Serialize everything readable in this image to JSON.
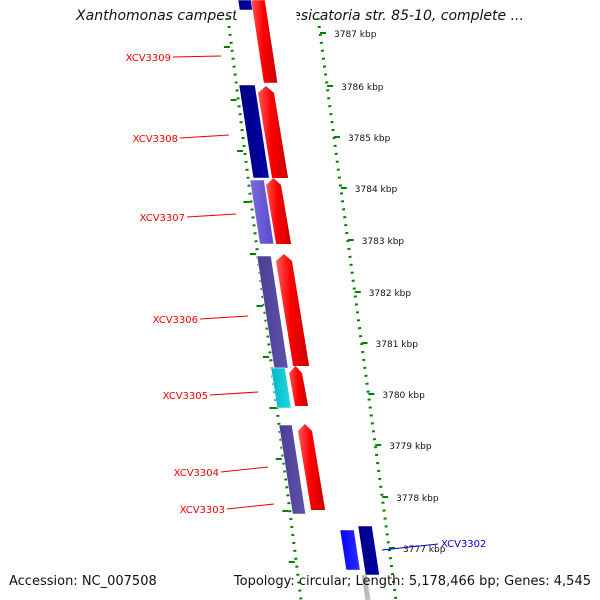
{
  "title": "Xanthomonas campestris pv. vesicatoria str. 85-10, complete ...",
  "scale_labels": [
    "3787 kbp",
    "3786 kbp",
    "3785 kbp",
    "3784 kbp",
    "3783 kbp",
    "3782 kbp",
    "3781 kbp",
    "3780 kbp",
    "3779 kbp",
    "3778 kbp",
    "3777 kbp"
  ],
  "genes": [
    {
      "name": "XCV3309",
      "color": "#ee0000"
    },
    {
      "name": "XCV3308",
      "color": "#ee0000"
    },
    {
      "name": "XCV3307",
      "color": "#ee0000"
    },
    {
      "name": "XCV3306",
      "color": "#ee0000"
    },
    {
      "name": "XCV3305",
      "color": "#ee0000"
    },
    {
      "name": "XCV3304",
      "color": "#ee0000"
    },
    {
      "name": "XCV3303",
      "color": "#ee0000"
    },
    {
      "name": "XCV3302",
      "color": "#0000cc"
    }
  ],
  "footer": {
    "accession": "Accession: NC_007508",
    "summary": "Topology: circular; Length: 5,178,466 bp; Genes: 4,545"
  }
}
